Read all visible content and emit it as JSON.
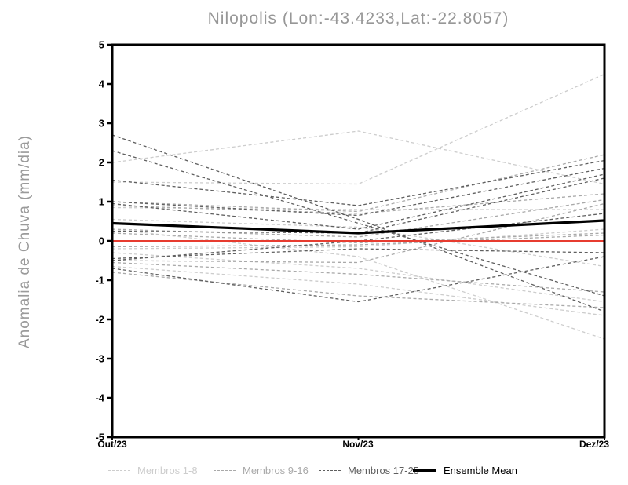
{
  "title": "Nilopolis (Lon:-43.4233,Lat:-22.8057)",
  "chart_data": {
    "type": "line",
    "x_categories": [
      "Out/23",
      "Nov/23",
      "Dez/23"
    ],
    "ylabel": "Anomalia de Chuva (mm/dia)",
    "ylim": [
      -5,
      5
    ],
    "y_ticks": [
      5,
      4,
      3,
      2,
      1,
      0,
      -1,
      -2,
      -3,
      -4,
      -5
    ],
    "grid": false,
    "legend_position": "bottom",
    "legend": [
      {
        "label": "Membros 1-8",
        "color": "#cdcdcd",
        "style": "dashed"
      },
      {
        "label": "Membros 9-16",
        "color": "#a9a9a9",
        "style": "dashed"
      },
      {
        "label": "Membros 17-25",
        "color": "#5f5f5f",
        "style": "dashed"
      },
      {
        "label": "Ensemble Mean",
        "color": "#000000",
        "style": "solid"
      }
    ],
    "series_groups": [
      {
        "name": "Membros 1-8",
        "color": "#cdcdcd",
        "style": "dashed",
        "members": [
          [
            2.0,
            2.8,
            1.45
          ],
          [
            1.5,
            1.45,
            4.25
          ],
          [
            0.85,
            0.8,
            0.8
          ],
          [
            0.55,
            0.35,
            -0.65
          ],
          [
            0.3,
            -0.4,
            -2.5
          ],
          [
            -0.2,
            -0.15,
            0.3
          ],
          [
            -0.3,
            -0.7,
            -1.55
          ],
          [
            -0.65,
            -1.1,
            -1.9
          ]
        ]
      },
      {
        "name": "Membros 9-16",
        "color": "#a9a9a9",
        "style": "dashed",
        "members": [
          [
            1.0,
            0.75,
            2.2
          ],
          [
            0.9,
            0.7,
            1.2
          ],
          [
            0.3,
            0.1,
            1.05
          ],
          [
            0.2,
            -0.05,
            0.2
          ],
          [
            -0.15,
            -0.1,
            0.15
          ],
          [
            -0.5,
            -0.55,
            0.95
          ],
          [
            -0.55,
            -0.85,
            -1.3
          ],
          [
            -0.8,
            -1.4,
            -1.7
          ]
        ]
      },
      {
        "name": "Membros 17-25",
        "color": "#5f5f5f",
        "style": "dashed",
        "members": [
          [
            2.7,
            0.55,
            -1.8
          ],
          [
            2.3,
            0.45,
            -1.4
          ],
          [
            1.55,
            0.9,
            2.05
          ],
          [
            1.0,
            0.65,
            1.85
          ],
          [
            0.95,
            0.3,
            1.7
          ],
          [
            0.25,
            0.2,
            1.6
          ],
          [
            -0.45,
            -0.2,
            -0.3
          ],
          [
            -0.5,
            0.0,
            0.7
          ],
          [
            -0.7,
            -1.55,
            -0.4
          ]
        ]
      }
    ],
    "ensemble_mean": {
      "name": "Ensemble Mean",
      "color": "#000000",
      "values": [
        0.45,
        0.2,
        0.52
      ]
    },
    "zero_line": {
      "color": "#e73c30",
      "value": 0
    }
  }
}
